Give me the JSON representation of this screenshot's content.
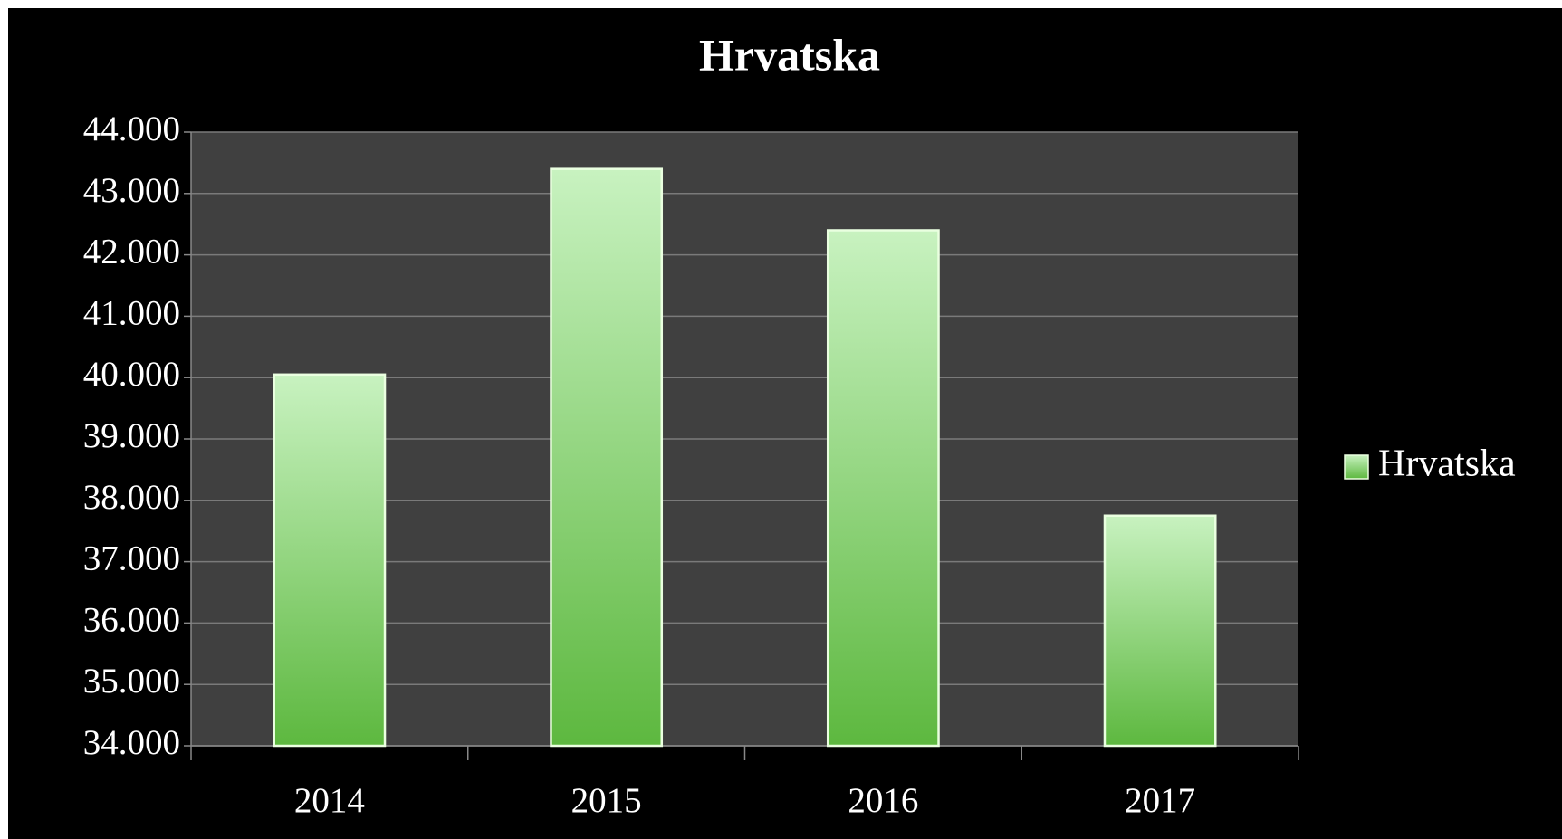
{
  "chart_data": {
    "type": "bar",
    "title": "Hrvatska",
    "categories": [
      "2014",
      "2015",
      "2016",
      "2017"
    ],
    "series": [
      {
        "name": "Hrvatska",
        "color": "#5db83f",
        "values": [
          40050,
          43400,
          42400,
          37750
        ]
      }
    ],
    "ylim": [
      34000,
      44000
    ],
    "yticks": [
      {
        "value": 34000,
        "label": "34.000"
      },
      {
        "value": 35000,
        "label": "35.000"
      },
      {
        "value": 36000,
        "label": "36.000"
      },
      {
        "value": 37000,
        "label": "37.000"
      },
      {
        "value": 38000,
        "label": "38.000"
      },
      {
        "value": 39000,
        "label": "39.000"
      },
      {
        "value": 40000,
        "label": "40.000"
      },
      {
        "value": 41000,
        "label": "41.000"
      },
      {
        "value": 42000,
        "label": "42.000"
      },
      {
        "value": 43000,
        "label": "43.000"
      },
      {
        "value": 44000,
        "label": "44.000"
      }
    ],
    "grid": true,
    "legend": "right"
  }
}
